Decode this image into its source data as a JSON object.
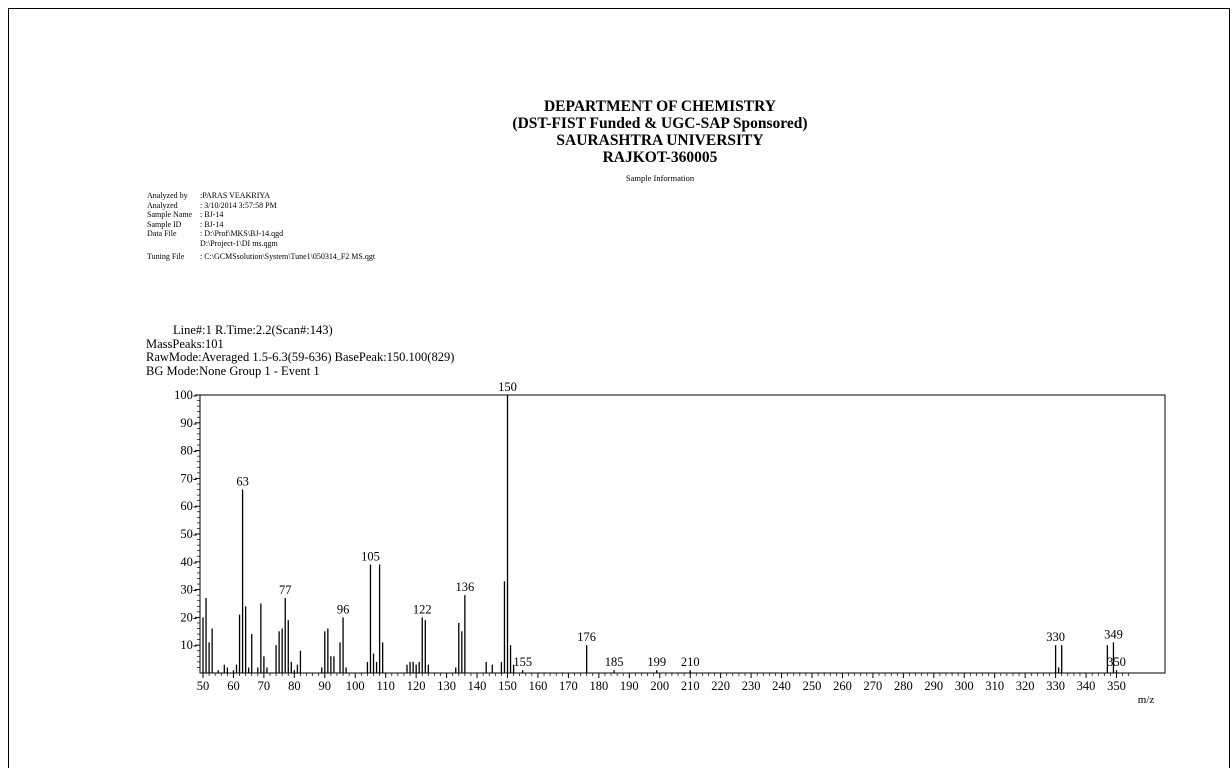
{
  "header": {
    "line1": "DEPARTMENT OF CHEMISTRY",
    "line2": "(DST-FIST Funded & UGC-SAP Sponsored)",
    "line3": "SAURASHTRA UNIVERSITY",
    "line4": "RAJKOT-360005",
    "subtitle": "Sample Information"
  },
  "sample_info": [
    {
      "key": "Analyzed by",
      "value": ":PARAS VEAKRIYA"
    },
    {
      "key": "Analyzed",
      "value": ": 3/10/2014 3:57:58 PM"
    },
    {
      "key": "Sample Name",
      "value": ": BJ-14"
    },
    {
      "key": "Sample ID",
      "value": ": BJ-14"
    },
    {
      "key": "Data File",
      "value": ": D:\\Prof\\MKS\\BJ-14.qgd"
    },
    {
      "key": "",
      "value": "D:\\Project-1\\DI ms.qgm"
    },
    {
      "key": "Tuning File",
      "value": ": C:\\GCMSsolution\\System\\Tune1\\050314_F2 MS.qgt"
    }
  ],
  "scan_info": {
    "line1": "Line#:1   R.Time:2.2(Scan#:143)",
    "line2": "MassPeaks:101",
    "line3": "RawMode:Averaged 1.5-6.3(59-636)  BasePeak:150.100(829)",
    "line4": "BG Mode:None  Group 1 - Event 1"
  },
  "chart_data": {
    "type": "bar",
    "xlabel": "m/z",
    "ylabel": "",
    "xlim": [
      50,
      355
    ],
    "ylim": [
      0,
      100
    ],
    "x_ticks": [
      50,
      60,
      70,
      80,
      90,
      100,
      110,
      120,
      130,
      140,
      150,
      160,
      170,
      180,
      190,
      200,
      210,
      220,
      230,
      240,
      250,
      260,
      270,
      280,
      290,
      300,
      310,
      320,
      330,
      340,
      350
    ],
    "y_ticks": [
      10,
      20,
      30,
      40,
      50,
      60,
      70,
      80,
      90,
      100
    ],
    "peaks": [
      {
        "mz": 50,
        "intensity": 20
      },
      {
        "mz": 51,
        "intensity": 27
      },
      {
        "mz": 52,
        "intensity": 11
      },
      {
        "mz": 53,
        "intensity": 16
      },
      {
        "mz": 55,
        "intensity": 1
      },
      {
        "mz": 57,
        "intensity": 3
      },
      {
        "mz": 58,
        "intensity": 2
      },
      {
        "mz": 60,
        "intensity": 1
      },
      {
        "mz": 61,
        "intensity": 3
      },
      {
        "mz": 62,
        "intensity": 21
      },
      {
        "mz": 63,
        "intensity": 66
      },
      {
        "mz": 64,
        "intensity": 24
      },
      {
        "mz": 65,
        "intensity": 2
      },
      {
        "mz": 66,
        "intensity": 14
      },
      {
        "mz": 68,
        "intensity": 2
      },
      {
        "mz": 69,
        "intensity": 25
      },
      {
        "mz": 70,
        "intensity": 6
      },
      {
        "mz": 71,
        "intensity": 2
      },
      {
        "mz": 74,
        "intensity": 10
      },
      {
        "mz": 75,
        "intensity": 15
      },
      {
        "mz": 76,
        "intensity": 16
      },
      {
        "mz": 77,
        "intensity": 27
      },
      {
        "mz": 78,
        "intensity": 19
      },
      {
        "mz": 79,
        "intensity": 4
      },
      {
        "mz": 80,
        "intensity": 1
      },
      {
        "mz": 81,
        "intensity": 3
      },
      {
        "mz": 82,
        "intensity": 8
      },
      {
        "mz": 89,
        "intensity": 2
      },
      {
        "mz": 90,
        "intensity": 15
      },
      {
        "mz": 91,
        "intensity": 16
      },
      {
        "mz": 92,
        "intensity": 6
      },
      {
        "mz": 93,
        "intensity": 6
      },
      {
        "mz": 95,
        "intensity": 11
      },
      {
        "mz": 96,
        "intensity": 20
      },
      {
        "mz": 97,
        "intensity": 2
      },
      {
        "mz": 104,
        "intensity": 4
      },
      {
        "mz": 105,
        "intensity": 39
      },
      {
        "mz": 106,
        "intensity": 7
      },
      {
        "mz": 107,
        "intensity": 4
      },
      {
        "mz": 108,
        "intensity": 39
      },
      {
        "mz": 109,
        "intensity": 11
      },
      {
        "mz": 117,
        "intensity": 3
      },
      {
        "mz": 118,
        "intensity": 4
      },
      {
        "mz": 119,
        "intensity": 4
      },
      {
        "mz": 120,
        "intensity": 3
      },
      {
        "mz": 121,
        "intensity": 4
      },
      {
        "mz": 122,
        "intensity": 20
      },
      {
        "mz": 123,
        "intensity": 19
      },
      {
        "mz": 124,
        "intensity": 3
      },
      {
        "mz": 133,
        "intensity": 2
      },
      {
        "mz": 134,
        "intensity": 18
      },
      {
        "mz": 135,
        "intensity": 15
      },
      {
        "mz": 136,
        "intensity": 28
      },
      {
        "mz": 143,
        "intensity": 4
      },
      {
        "mz": 145,
        "intensity": 3
      },
      {
        "mz": 148,
        "intensity": 4
      },
      {
        "mz": 149,
        "intensity": 33
      },
      {
        "mz": 150,
        "intensity": 100
      },
      {
        "mz": 151,
        "intensity": 10
      },
      {
        "mz": 152,
        "intensity": 3
      },
      {
        "mz": 155,
        "intensity": 1
      },
      {
        "mz": 176,
        "intensity": 10
      },
      {
        "mz": 185,
        "intensity": 1
      },
      {
        "mz": 199,
        "intensity": 1
      },
      {
        "mz": 210,
        "intensity": 1
      },
      {
        "mz": 330,
        "intensity": 10
      },
      {
        "mz": 331,
        "intensity": 2
      },
      {
        "mz": 332,
        "intensity": 10
      },
      {
        "mz": 347,
        "intensity": 10
      },
      {
        "mz": 349,
        "intensity": 11
      },
      {
        "mz": 350,
        "intensity": 1
      }
    ],
    "labels": [
      {
        "mz": 63,
        "text": "63"
      },
      {
        "mz": 77,
        "text": "77"
      },
      {
        "mz": 96,
        "text": "96"
      },
      {
        "mz": 105,
        "text": "105"
      },
      {
        "mz": 122,
        "text": "122"
      },
      {
        "mz": 136,
        "text": "136"
      },
      {
        "mz": 150,
        "text": "150"
      },
      {
        "mz": 155,
        "text": "155"
      },
      {
        "mz": 176,
        "text": "176"
      },
      {
        "mz": 185,
        "text": "185"
      },
      {
        "mz": 199,
        "text": "199"
      },
      {
        "mz": 210,
        "text": "210"
      },
      {
        "mz": 330,
        "text": "330"
      },
      {
        "mz": 349,
        "text": "349"
      },
      {
        "mz": 350,
        "text": "350"
      }
    ]
  }
}
